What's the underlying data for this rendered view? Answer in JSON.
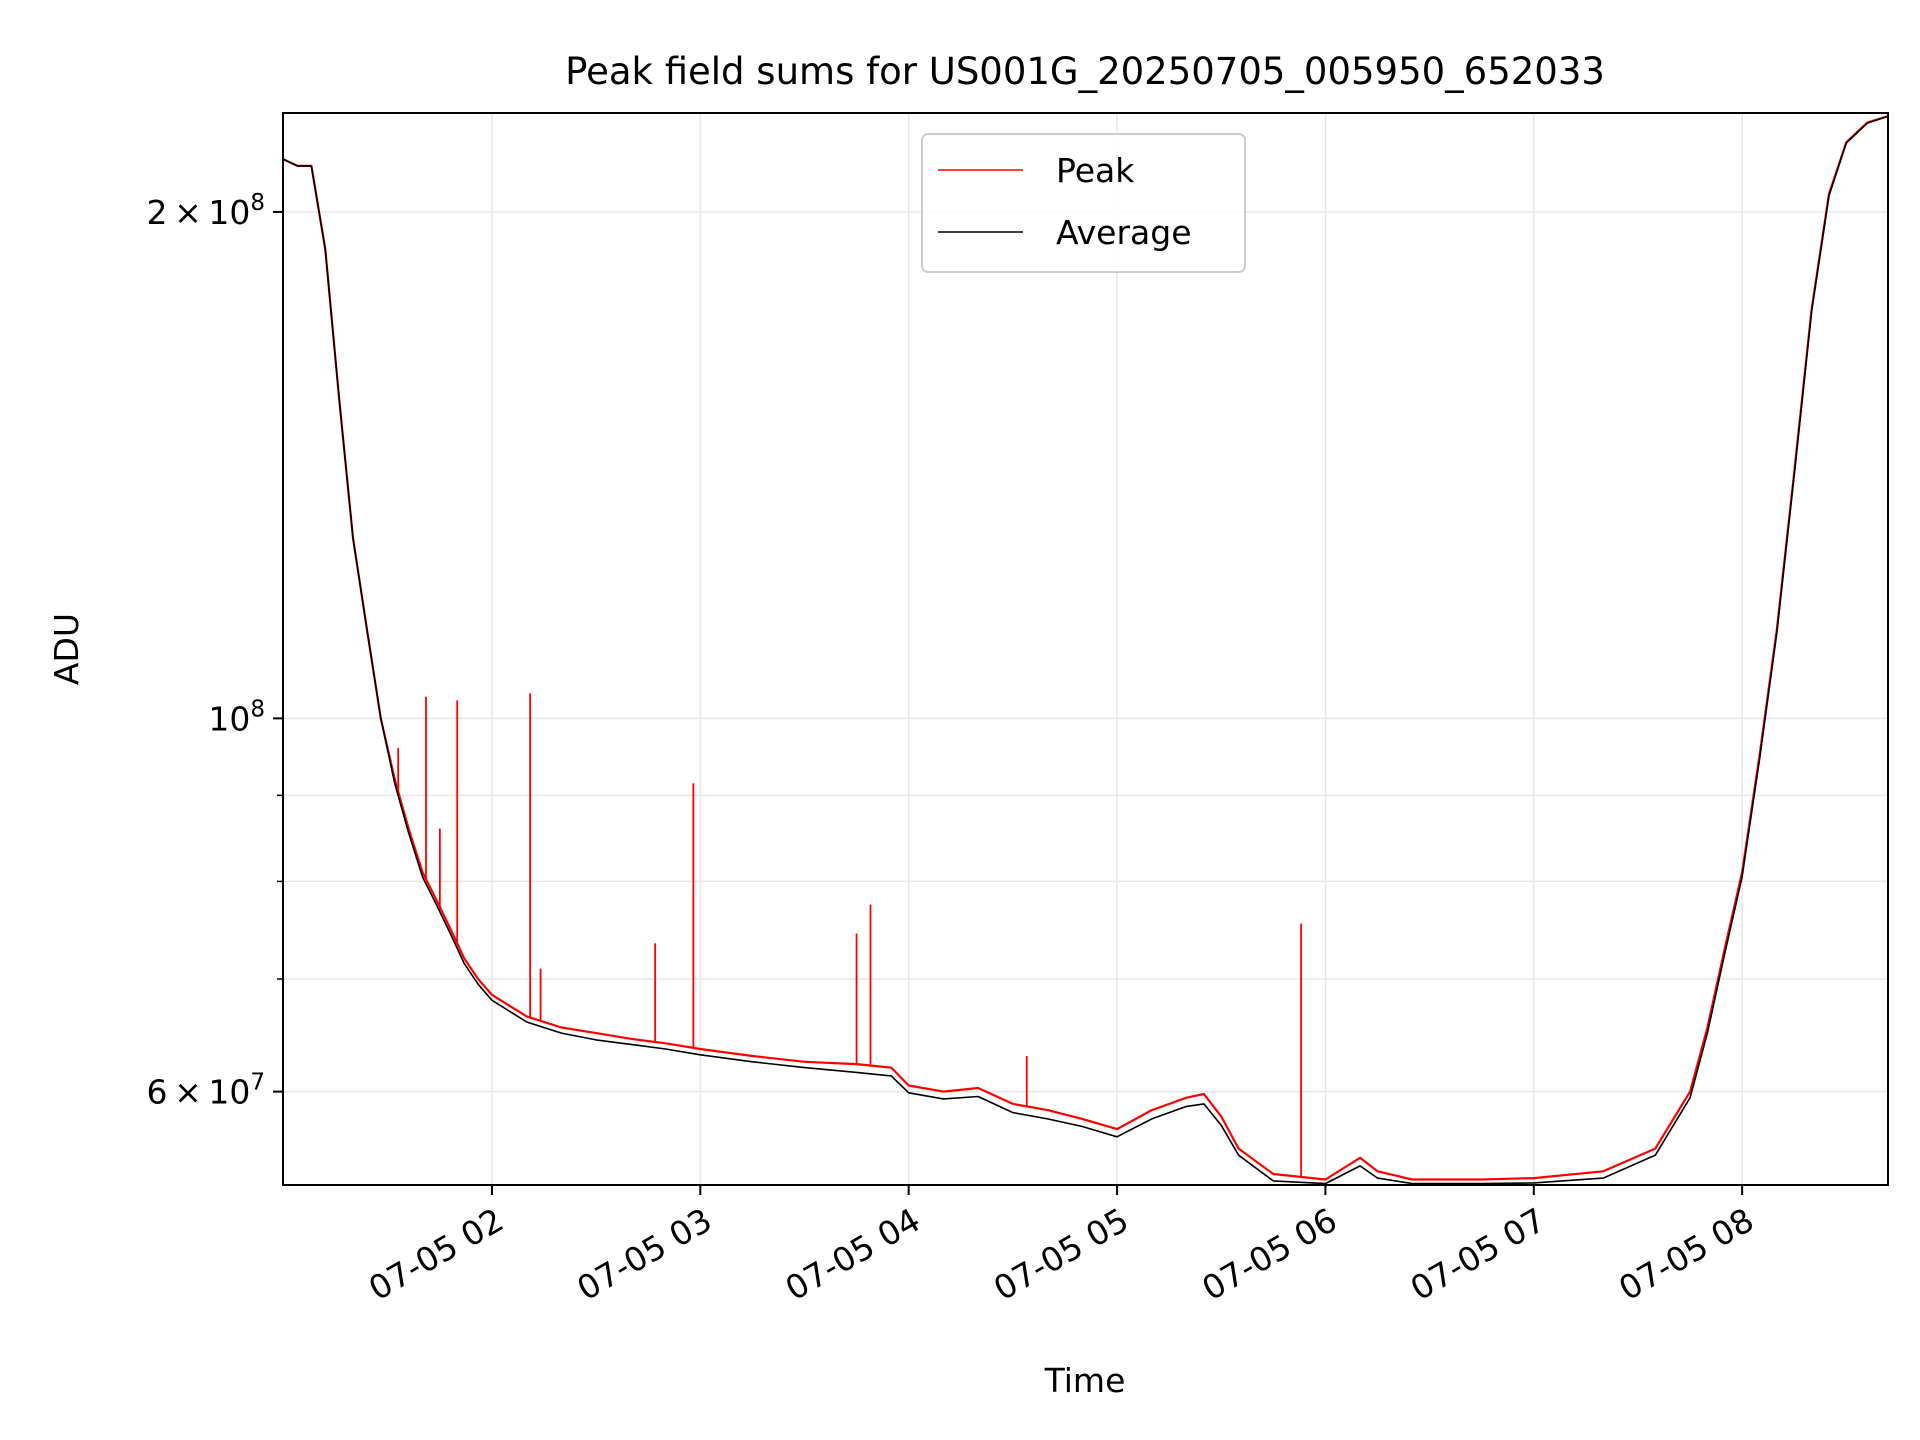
{
  "chart_data": {
    "type": "line",
    "title": "Peak field sums for US001G_20250705_005950_652033",
    "xlabel": "Time",
    "ylabel": "ADU",
    "y_scale": "log",
    "xlim": [
      "2025-07-05 00:59:50",
      "2025-07-05 08:42:00"
    ],
    "ylim": [
      52800000,
      229000000
    ],
    "x_ticks": [
      "07-05 02",
      "07-05 03",
      "07-05 04",
      "07-05 05",
      "07-05 06",
      "07-05 07",
      "07-05 08"
    ],
    "x_tick_values": [
      "2025-07-05 02:00",
      "2025-07-05 03:00",
      "2025-07-05 04:00",
      "2025-07-05 05:00",
      "2025-07-05 06:00",
      "2025-07-05 07:00",
      "2025-07-05 08:00"
    ],
    "y_major_ticks": [
      {
        "value": 60000000,
        "mant": "6",
        "exp": "7"
      },
      {
        "value": 100000000,
        "mant": "",
        "exp": "8"
      },
      {
        "value": 200000000,
        "mant": "2",
        "exp": "8"
      }
    ],
    "y_minor_ticks": [
      70000000,
      80000000,
      90000000
    ],
    "grid": true,
    "legend_position": "top-center",
    "series": [
      {
        "name": "Peak",
        "color": "#ff0000",
        "points": [
          [
            "2025-07-05 00:59:50",
            215000000
          ],
          [
            "2025-07-05 01:04:00",
            213000000
          ],
          [
            "2025-07-05 01:08:00",
            213000000
          ],
          [
            "2025-07-05 01:12:00",
            190000000
          ],
          [
            "2025-07-05 01:16:00",
            155000000
          ],
          [
            "2025-07-05 01:20:00",
            128000000
          ],
          [
            "2025-07-05 01:24:00",
            113000000
          ],
          [
            "2025-07-05 01:28:00",
            100000000
          ],
          [
            "2025-07-05 01:32:00",
            92000000
          ],
          [
            "2025-07-05 01:36:00",
            86000000
          ],
          [
            "2025-07-05 01:40:00",
            81000000
          ],
          [
            "2025-07-05 01:44:00",
            78000000
          ],
          [
            "2025-07-05 01:48:00",
            75000000
          ],
          [
            "2025-07-05 01:52:00",
            72000000
          ],
          [
            "2025-07-05 01:56:00",
            70000000
          ],
          [
            "2025-07-05 02:00:00",
            68500000
          ],
          [
            "2025-07-05 02:10:00",
            66500000
          ],
          [
            "2025-07-05 02:20:00",
            65500000
          ],
          [
            "2025-07-05 02:30:00",
            65000000
          ],
          [
            "2025-07-05 02:40:00",
            64500000
          ],
          [
            "2025-07-05 02:50:00",
            64100000
          ],
          [
            "2025-07-05 03:00:00",
            63600000
          ],
          [
            "2025-07-05 03:15:00",
            63000000
          ],
          [
            "2025-07-05 03:30:00",
            62500000
          ],
          [
            "2025-07-05 03:45:00",
            62300000
          ],
          [
            "2025-07-05 03:55:00",
            62000000
          ],
          [
            "2025-07-05 04:00:00",
            60500000
          ],
          [
            "2025-07-05 04:10:00",
            60000000
          ],
          [
            "2025-07-05 04:20:00",
            60300000
          ],
          [
            "2025-07-05 04:30:00",
            59000000
          ],
          [
            "2025-07-05 04:40:00",
            58500000
          ],
          [
            "2025-07-05 04:50:00",
            57800000
          ],
          [
            "2025-07-05 05:00:00",
            57000000
          ],
          [
            "2025-07-05 05:10:00",
            58500000
          ],
          [
            "2025-07-05 05:20:00",
            59500000
          ],
          [
            "2025-07-05 05:25:00",
            59800000
          ],
          [
            "2025-07-05 05:30:00",
            58000000
          ],
          [
            "2025-07-05 05:35:00",
            55500000
          ],
          [
            "2025-07-05 05:45:00",
            53600000
          ],
          [
            "2025-07-05 06:00:00",
            53200000
          ],
          [
            "2025-07-05 06:10:00",
            54800000
          ],
          [
            "2025-07-05 06:15:00",
            53800000
          ],
          [
            "2025-07-05 06:25:00",
            53200000
          ],
          [
            "2025-07-05 06:45:00",
            53200000
          ],
          [
            "2025-07-05 07:00:00",
            53300000
          ],
          [
            "2025-07-05 07:20:00",
            53800000
          ],
          [
            "2025-07-05 07:35:00",
            55500000
          ],
          [
            "2025-07-05 07:45:00",
            60000000
          ],
          [
            "2025-07-05 07:50:00",
            65500000
          ],
          [
            "2025-07-05 07:55:00",
            73000000
          ],
          [
            "2025-07-05 08:00:00",
            81000000
          ],
          [
            "2025-07-05 08:05:00",
            95000000
          ],
          [
            "2025-07-05 08:10:00",
            113000000
          ],
          [
            "2025-07-05 08:15:00",
            140000000
          ],
          [
            "2025-07-05 08:20:00",
            175000000
          ],
          [
            "2025-07-05 08:25:00",
            205000000
          ],
          [
            "2025-07-05 08:30:00",
            220000000
          ],
          [
            "2025-07-05 08:36:00",
            226000000
          ],
          [
            "2025-07-05 08:42:00",
            228000000
          ]
        ],
        "spikes": [
          [
            "2025-07-05 01:33:00",
            96000000
          ],
          [
            "2025-07-05 01:41:00",
            103000000
          ],
          [
            "2025-07-05 01:45:00",
            86000000
          ],
          [
            "2025-07-05 01:50:00",
            102500000
          ],
          [
            "2025-07-05 02:11:00",
            103500000
          ],
          [
            "2025-07-05 02:14:00",
            71000000
          ],
          [
            "2025-07-05 02:47:00",
            73500000
          ],
          [
            "2025-07-05 02:58:00",
            91500000
          ],
          [
            "2025-07-05 03:45:00",
            74500000
          ],
          [
            "2025-07-05 03:49:00",
            77500000
          ],
          [
            "2025-07-05 04:34:00",
            63000000
          ],
          [
            "2025-07-05 05:53:00",
            75500000
          ]
        ]
      },
      {
        "name": "Average",
        "color": "#000000",
        "points": [
          [
            "2025-07-05 00:59:50",
            215000000
          ],
          [
            "2025-07-05 01:04:00",
            213000000
          ],
          [
            "2025-07-05 01:08:00",
            213000000
          ],
          [
            "2025-07-05 01:12:00",
            190000000
          ],
          [
            "2025-07-05 01:16:00",
            155000000
          ],
          [
            "2025-07-05 01:20:00",
            128000000
          ],
          [
            "2025-07-05 01:24:00",
            113000000
          ],
          [
            "2025-07-05 01:28:00",
            100000000
          ],
          [
            "2025-07-05 01:32:00",
            91500000
          ],
          [
            "2025-07-05 01:36:00",
            85500000
          ],
          [
            "2025-07-05 01:40:00",
            80500000
          ],
          [
            "2025-07-05 01:44:00",
            77500000
          ],
          [
            "2025-07-05 01:48:00",
            74500000
          ],
          [
            "2025-07-05 01:52:00",
            71500000
          ],
          [
            "2025-07-05 01:56:00",
            69500000
          ],
          [
            "2025-07-05 02:00:00",
            68000000
          ],
          [
            "2025-07-05 02:10:00",
            66000000
          ],
          [
            "2025-07-05 02:20:00",
            65000000
          ],
          [
            "2025-07-05 02:30:00",
            64400000
          ],
          [
            "2025-07-05 02:40:00",
            64000000
          ],
          [
            "2025-07-05 02:50:00",
            63600000
          ],
          [
            "2025-07-05 03:00:00",
            63100000
          ],
          [
            "2025-07-05 03:15:00",
            62500000
          ],
          [
            "2025-07-05 03:30:00",
            62000000
          ],
          [
            "2025-07-05 03:45:00",
            61600000
          ],
          [
            "2025-07-05 03:55:00",
            61300000
          ],
          [
            "2025-07-05 04:00:00",
            59900000
          ],
          [
            "2025-07-05 04:10:00",
            59400000
          ],
          [
            "2025-07-05 04:20:00",
            59600000
          ],
          [
            "2025-07-05 04:30:00",
            58300000
          ],
          [
            "2025-07-05 04:40:00",
            57800000
          ],
          [
            "2025-07-05 04:50:00",
            57200000
          ],
          [
            "2025-07-05 05:00:00",
            56400000
          ],
          [
            "2025-07-05 05:10:00",
            57800000
          ],
          [
            "2025-07-05 05:20:00",
            58800000
          ],
          [
            "2025-07-05 05:25:00",
            59000000
          ],
          [
            "2025-07-05 05:30:00",
            57300000
          ],
          [
            "2025-07-05 05:35:00",
            55000000
          ],
          [
            "2025-07-05 05:45:00",
            53100000
          ],
          [
            "2025-07-05 06:00:00",
            52900000
          ],
          [
            "2025-07-05 06:10:00",
            54200000
          ],
          [
            "2025-07-05 06:15:00",
            53300000
          ],
          [
            "2025-07-05 06:25:00",
            52900000
          ],
          [
            "2025-07-05 06:45:00",
            52900000
          ],
          [
            "2025-07-05 07:00:00",
            52950000
          ],
          [
            "2025-07-05 07:20:00",
            53300000
          ],
          [
            "2025-07-05 07:35:00",
            55000000
          ],
          [
            "2025-07-05 07:45:00",
            59500000
          ],
          [
            "2025-07-05 07:50:00",
            65000000
          ],
          [
            "2025-07-05 07:55:00",
            72500000
          ],
          [
            "2025-07-05 08:00:00",
            80500000
          ],
          [
            "2025-07-05 08:05:00",
            94500000
          ],
          [
            "2025-07-05 08:10:00",
            112500000
          ],
          [
            "2025-07-05 08:15:00",
            139500000
          ],
          [
            "2025-07-05 08:20:00",
            174500000
          ],
          [
            "2025-07-05 08:25:00",
            204500000
          ],
          [
            "2025-07-05 08:30:00",
            219800000
          ],
          [
            "2025-07-05 08:36:00",
            225800000
          ],
          [
            "2025-07-05 08:42:00",
            228000000
          ]
        ]
      }
    ]
  }
}
